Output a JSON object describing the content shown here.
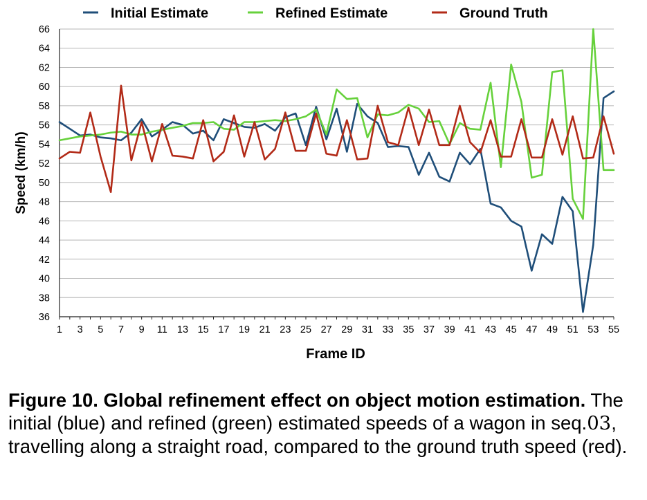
{
  "chart_data": {
    "type": "line",
    "title": "",
    "xlabel": "Frame ID",
    "ylabel": "Speed (km/h)",
    "x": [
      1,
      2,
      3,
      4,
      5,
      6,
      7,
      8,
      9,
      10,
      11,
      12,
      13,
      14,
      15,
      16,
      17,
      18,
      19,
      20,
      21,
      22,
      23,
      24,
      25,
      26,
      27,
      28,
      29,
      30,
      31,
      32,
      33,
      34,
      35,
      36,
      37,
      38,
      39,
      40,
      41,
      42,
      43,
      44,
      45,
      46,
      47,
      48,
      49,
      50,
      51,
      52,
      53,
      54,
      55
    ],
    "x_tick_labels": [
      "1",
      "3",
      "5",
      "7",
      "9",
      "11",
      "13",
      "15",
      "17",
      "19",
      "21",
      "23",
      "25",
      "27",
      "29",
      "31",
      "33",
      "35",
      "37",
      "39",
      "41",
      "43",
      "45",
      "47",
      "49",
      "51",
      "53",
      "55"
    ],
    "xlim": [
      1,
      55
    ],
    "ylim": [
      36,
      66
    ],
    "y_tick_labels": [
      "36",
      "38",
      "40",
      "42",
      "44",
      "46",
      "48",
      "50",
      "52",
      "54",
      "56",
      "58",
      "60",
      "62",
      "64",
      "66"
    ],
    "grid": true,
    "legend_position": "top",
    "series": [
      {
        "name": "Initial Estimate",
        "color": "#1f4e79",
        "values": [
          56.3,
          55.6,
          54.9,
          55.0,
          54.7,
          54.6,
          54.4,
          55.2,
          56.6,
          54.8,
          55.5,
          56.3,
          56.0,
          55.1,
          55.4,
          54.4,
          56.6,
          56.2,
          55.8,
          55.7,
          56.1,
          55.4,
          56.8,
          57.2,
          53.9,
          57.9,
          54.5,
          57.7,
          53.2,
          58.2,
          56.9,
          56.2,
          53.7,
          53.8,
          53.7,
          50.8,
          53.1,
          50.6,
          50.1,
          53.1,
          51.9,
          53.5,
          47.8,
          47.4,
          46.0,
          45.4,
          40.8,
          44.6,
          43.6,
          48.5,
          47.0,
          36.5,
          43.5,
          58.8,
          59.5
        ]
      },
      {
        "name": "Refined Estimate",
        "color": "#66d13b",
        "values": [
          54.4,
          54.6,
          54.8,
          54.9,
          55.0,
          55.2,
          55.3,
          55.0,
          55.0,
          55.3,
          55.5,
          55.7,
          55.9,
          56.2,
          56.2,
          56.3,
          55.6,
          55.5,
          56.3,
          56.3,
          56.4,
          56.5,
          56.4,
          56.6,
          56.9,
          57.6,
          55.0,
          59.7,
          58.7,
          58.8,
          54.7,
          57.1,
          57.0,
          57.3,
          58.1,
          57.7,
          56.3,
          56.4,
          54.0,
          56.2,
          55.6,
          55.5,
          60.4,
          51.6,
          62.3,
          58.4,
          50.5,
          50.8,
          61.5,
          61.7,
          48.3,
          46.2,
          66.0,
          51.3,
          51.3
        ]
      },
      {
        "name": "Ground Truth",
        "color": "#b22a17",
        "values": [
          52.5,
          53.2,
          53.1,
          57.3,
          52.7,
          49.0,
          60.1,
          52.3,
          56.3,
          52.2,
          56.1,
          52.8,
          52.7,
          52.5,
          56.5,
          52.2,
          53.2,
          57.0,
          52.7,
          56.3,
          52.4,
          53.5,
          57.3,
          53.3,
          53.3,
          57.2,
          53.0,
          52.8,
          56.5,
          52.4,
          52.5,
          58.0,
          54.2,
          53.9,
          57.8,
          53.9,
          57.6,
          53.9,
          53.9,
          58.0,
          54.2,
          53.1,
          56.5,
          52.7,
          52.7,
          56.6,
          52.6,
          52.6,
          56.6,
          52.9,
          56.9,
          52.5,
          52.6,
          56.9,
          53.0
        ]
      }
    ]
  },
  "caption": {
    "figure_label": "Figure 10.  Global refinement effect on object motion estimation.",
    "text_before_seq": " The initial (blue) and refined (green) estimated speeds of a wagon in seq.",
    "seq_number": "03",
    "text_after_seq": ", travelling along a straight road, compared to the ground truth speed (red)."
  }
}
